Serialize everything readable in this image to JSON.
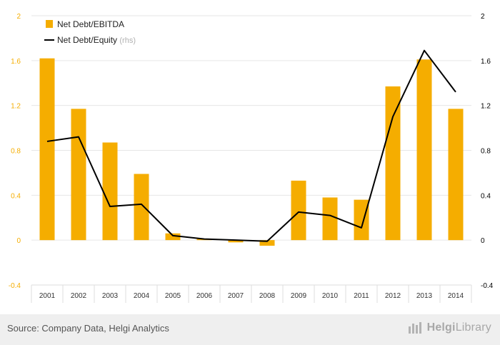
{
  "chart_data": {
    "type": "bar",
    "categories": [
      "2001",
      "2002",
      "2003",
      "2004",
      "2005",
      "2006",
      "2007",
      "2008",
      "2009",
      "2010",
      "2011",
      "2012",
      "2013",
      "2014"
    ],
    "series": [
      {
        "name": "Net Debt/EBITDA",
        "kind": "bar",
        "axis": "left",
        "color": "#f5ad00",
        "values": [
          1.62,
          1.17,
          0.87,
          0.59,
          0.06,
          0.01,
          -0.02,
          -0.05,
          0.53,
          0.38,
          0.36,
          1.37,
          1.61,
          1.17
        ]
      },
      {
        "name": "Net Debt/Equity",
        "kind": "line",
        "axis": "right",
        "color": "#000000",
        "values": [
          0.88,
          0.92,
          0.3,
          0.32,
          0.04,
          0.01,
          0.0,
          -0.01,
          0.25,
          0.22,
          0.11,
          1.1,
          1.69,
          1.32
        ]
      }
    ],
    "legend": {
      "position": "top-left",
      "items": [
        {
          "label": "Net Debt/EBITDA",
          "suffix": "",
          "swatch": "bar"
        },
        {
          "label": "Net Debt/Equity",
          "suffix": "(rhs)",
          "swatch": "line"
        }
      ]
    },
    "y_left": {
      "ticks": [
        "2",
        "1.6",
        "1.2",
        "0.8",
        "0.4",
        "0",
        "-0.4"
      ],
      "tick_values": [
        2,
        1.6,
        1.2,
        0.8,
        0.4,
        0,
        -0.4
      ],
      "range": [
        -0.4,
        2
      ],
      "color": "#f5ad00"
    },
    "y_right": {
      "ticks": [
        "2",
        "1.6",
        "1.2",
        "0.8",
        "0.4",
        "0",
        "-0.4"
      ],
      "tick_values": [
        2,
        1.6,
        1.2,
        0.8,
        0.4,
        0,
        -0.4
      ],
      "range": [
        -0.4,
        2
      ],
      "color": "#000000"
    },
    "grid": true
  },
  "footer": {
    "source": "Source: Company Data, Helgi Analytics",
    "brand_name": "Helgi",
    "brand_suffix": "Library",
    "brand_icon": "helgi-library-logo-icon"
  }
}
